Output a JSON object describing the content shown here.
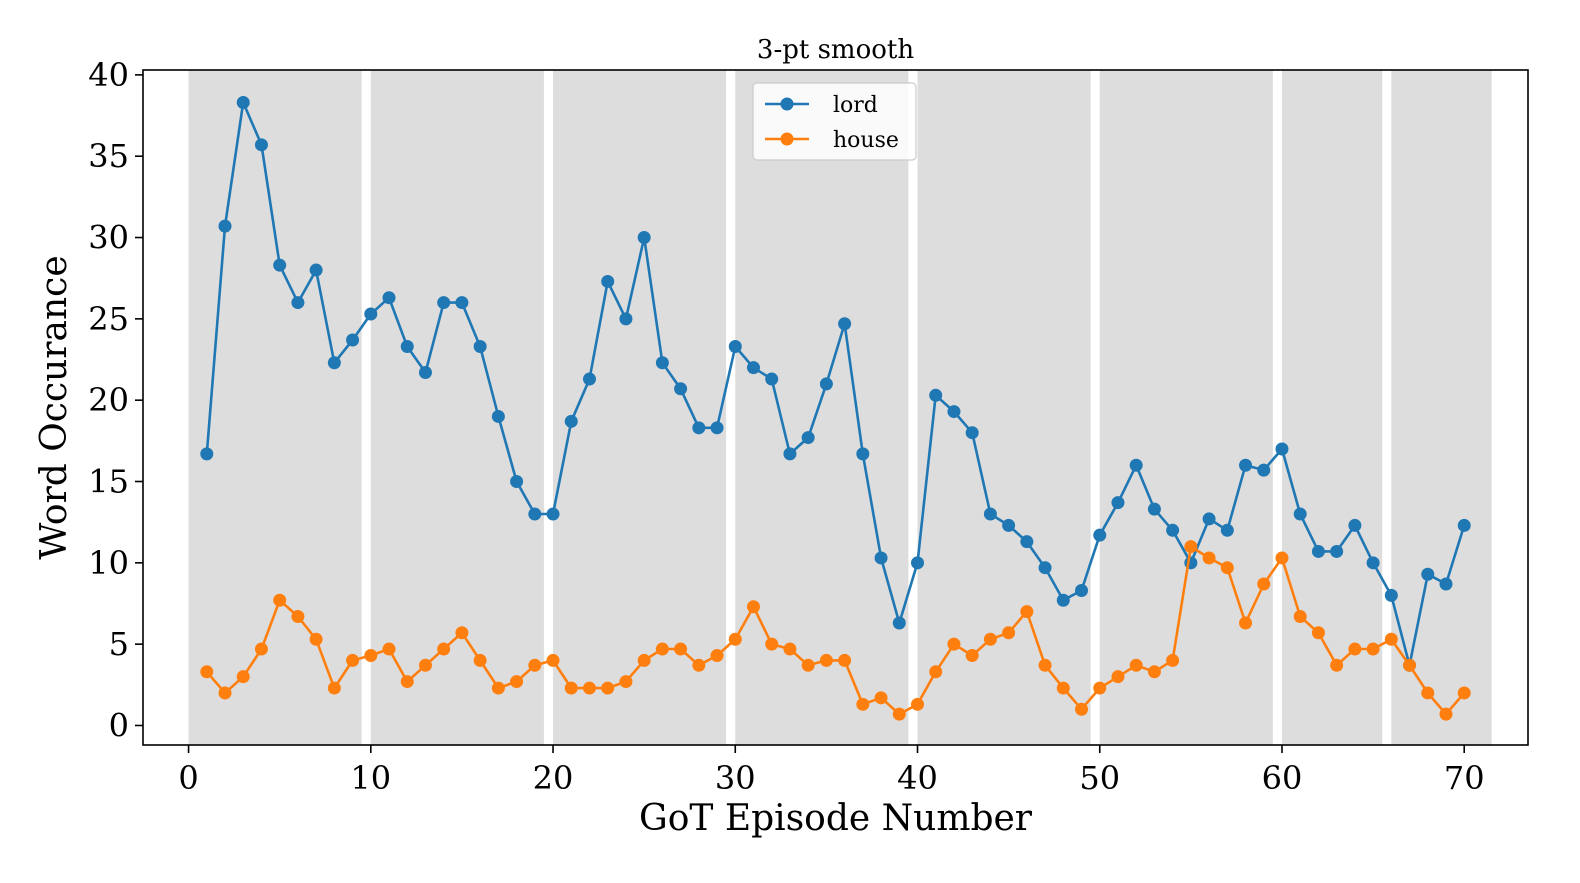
{
  "chart_data": {
    "type": "line",
    "title": "3-pt smooth",
    "xlabel": "GoT Episode Number",
    "ylabel": "Word Occurance",
    "xlim": [
      -2.5,
      73.5
    ],
    "ylim": [
      -1.2,
      40.3
    ],
    "x_ticks": [
      "0",
      "10",
      "20",
      "30",
      "40",
      "50",
      "60",
      "70"
    ],
    "y_ticks": [
      "0",
      "5",
      "10",
      "15",
      "20",
      "25",
      "30",
      "35",
      "40"
    ],
    "x_tick_values": [
      0,
      10,
      20,
      30,
      40,
      50,
      60,
      70
    ],
    "y_tick_values": [
      0,
      5,
      10,
      15,
      20,
      25,
      30,
      35,
      40
    ],
    "season_bands": [
      [
        0,
        9.5
      ],
      [
        10,
        19.5
      ],
      [
        20,
        29.5
      ],
      [
        30,
        39.5
      ],
      [
        40,
        49.5
      ],
      [
        50,
        59.5
      ],
      [
        60,
        65.5
      ],
      [
        66,
        71.5
      ]
    ],
    "band_color": "#dddddd",
    "legend_position": "upper center",
    "grid": false,
    "x": [
      1,
      2,
      3,
      4,
      5,
      6,
      7,
      8,
      9,
      10,
      11,
      12,
      13,
      14,
      15,
      16,
      17,
      18,
      19,
      20,
      21,
      22,
      23,
      24,
      25,
      26,
      27,
      28,
      29,
      30,
      31,
      32,
      33,
      34,
      35,
      36,
      37,
      38,
      39,
      40,
      41,
      42,
      43,
      44,
      45,
      46,
      47,
      48,
      49,
      50,
      51,
      52,
      53,
      54,
      55,
      56,
      57,
      58,
      59,
      60,
      61,
      62,
      63,
      64,
      65,
      66,
      67,
      68,
      69,
      70
    ],
    "series": [
      {
        "name": "lord",
        "color": "#1f77b4",
        "values": [
          16.7,
          30.7,
          38.3,
          35.7,
          28.3,
          26.0,
          28.0,
          22.3,
          23.7,
          25.3,
          26.3,
          23.3,
          21.7,
          26.0,
          26.0,
          23.3,
          19.0,
          15.0,
          13.0,
          13.0,
          18.7,
          21.3,
          27.3,
          25.0,
          30.0,
          22.3,
          20.7,
          18.3,
          18.3,
          23.3,
          22.0,
          21.3,
          16.7,
          17.7,
          21.0,
          24.7,
          16.7,
          10.3,
          6.3,
          10.0,
          20.3,
          19.3,
          18.0,
          13.0,
          12.3,
          11.3,
          9.7,
          7.7,
          8.3,
          11.7,
          13.7,
          16.0,
          13.3,
          12.0,
          10.0,
          12.7,
          12.0,
          16.0,
          15.7,
          17.0,
          13.0,
          10.7,
          10.7,
          12.3,
          10.0,
          8.0,
          3.7,
          9.3,
          8.7,
          12.3
        ]
      },
      {
        "name": "house",
        "color": "#ff7f0e",
        "values": [
          3.3,
          2.0,
          3.0,
          4.7,
          7.7,
          6.7,
          5.3,
          2.3,
          4.0,
          4.3,
          4.7,
          2.7,
          3.7,
          4.7,
          5.7,
          4.0,
          2.3,
          2.7,
          3.7,
          4.0,
          2.3,
          2.3,
          2.3,
          2.7,
          4.0,
          4.7,
          4.7,
          3.7,
          4.3,
          5.3,
          7.3,
          5.0,
          4.7,
          3.7,
          4.0,
          4.0,
          1.3,
          1.7,
          0.7,
          1.3,
          3.3,
          5.0,
          4.3,
          5.3,
          5.7,
          7.0,
          3.7,
          2.3,
          1.0,
          2.3,
          3.0,
          3.7,
          3.3,
          4.0,
          11.0,
          10.3,
          9.7,
          6.3,
          8.7,
          10.3,
          6.7,
          5.7,
          3.7,
          4.7,
          4.7,
          5.3,
          3.7,
          2.0,
          0.7,
          2.0
        ]
      }
    ]
  }
}
